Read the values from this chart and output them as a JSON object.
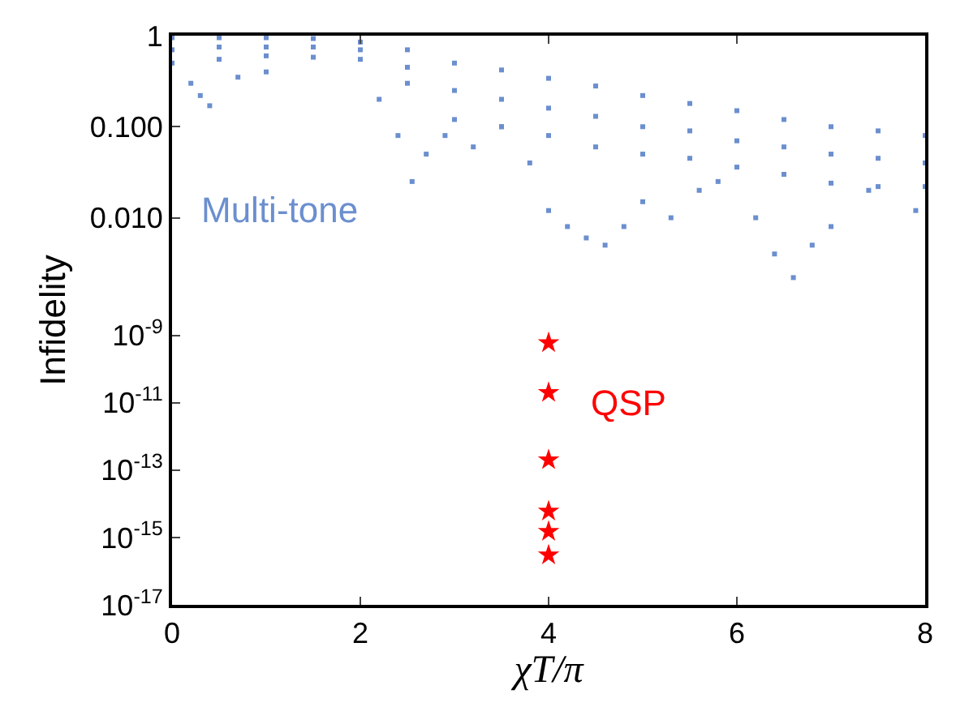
{
  "chart_data": [
    {
      "type": "scatter",
      "xlim": [
        0,
        8
      ],
      "xticks": [
        0,
        2,
        4,
        6,
        8
      ],
      "ylim": [
        0.002,
        1
      ],
      "log": "y",
      "tick_labels": "y",
      "marker": "square",
      "legend": false,
      "yticks": [
        1,
        {
          "value": 0.1,
          "label": "0.100"
        },
        {
          "value": 0.01,
          "label": "0.010"
        }
      ],
      "series": [
        {
          "name": "Multi-tone",
          "color": "#6b8fcf",
          "x": [
            0,
            0.5,
            1,
            1.5,
            2,
            2.5,
            3,
            3.5,
            4,
            4.5,
            5,
            5.5,
            6,
            6.5,
            7,
            7.5,
            8,
            0,
            0.5,
            1,
            1.5,
            2,
            2.5,
            3,
            3.5,
            4,
            4.5,
            5,
            5.5,
            6,
            6.5,
            7,
            7.5,
            8,
            0.2,
            0.3,
            0.4,
            0.7,
            1.0,
            2.2,
            2.4,
            2.55,
            2.7,
            2.9,
            3.2,
            3.5,
            3.8,
            4.0,
            4.2,
            4.4,
            4.6,
            4.8,
            5.0,
            5.3,
            5.6,
            5.8,
            6.2,
            6.4,
            6.6,
            6.8,
            7.0,
            7.4,
            7.9,
            0,
            0.5,
            1,
            1.5,
            2,
            2.5,
            3,
            3.5,
            4,
            4.5,
            5,
            5.5,
            6,
            6.5,
            7,
            7.5,
            8
          ],
          "values": [
            0.95,
            0.95,
            0.95,
            0.93,
            0.85,
            0.7,
            0.5,
            0.42,
            0.34,
            0.28,
            0.22,
            0.18,
            0.15,
            0.12,
            0.1,
            0.09,
            0.08,
            0.5,
            0.55,
            0.6,
            0.58,
            0.55,
            0.3,
            0.12,
            0.1,
            0.08,
            0.06,
            0.05,
            0.045,
            0.036,
            0.03,
            0.024,
            0.022,
            0.022,
            0.3,
            0.22,
            0.17,
            0.35,
            0.4,
            0.2,
            0.08,
            0.025,
            0.05,
            0.08,
            0.06,
            0.1,
            0.04,
            0.012,
            0.008,
            0.006,
            0.005,
            0.008,
            0.015,
            0.01,
            0.02,
            0.025,
            0.01,
            0.004,
            0.0022,
            0.005,
            0.008,
            0.02,
            0.012,
            0.7,
            0.75,
            0.75,
            0.75,
            0.7,
            0.45,
            0.25,
            0.2,
            0.16,
            0.13,
            0.1,
            0.09,
            0.07,
            0.06,
            0.05,
            0.045,
            0.04
          ]
        }
      ]
    },
    {
      "type": "scatter",
      "xlim": [
        0,
        8
      ],
      "xticks": [
        0,
        2,
        4,
        6,
        8
      ],
      "ylim": [
        1e-17,
        4e-08
      ],
      "log": "y",
      "marker": "star",
      "legend": false,
      "xlabel": "χT/π",
      "ylabel": "Infidelity",
      "yticks": [
        {
          "value": 1e-09,
          "label": "10$^{-9}$"
        },
        {
          "value": 1e-11,
          "label": "10$^{-11}$"
        },
        {
          "value": 1e-13,
          "label": "10$^{-13}$"
        },
        {
          "value": 1e-15,
          "label": "10$^{-15}$"
        },
        {
          "value": 1e-17,
          "label": "10$^{-17}$"
        }
      ],
      "series": [
        {
          "name": "QSP",
          "color": "#ff0000",
          "x": [
            4,
            4,
            4,
            4,
            4,
            4
          ],
          "values": [
            6e-10,
            2e-11,
            2e-13,
            6e-15,
            1.5e-15,
            3e-16
          ]
        }
      ]
    }
  ]
}
